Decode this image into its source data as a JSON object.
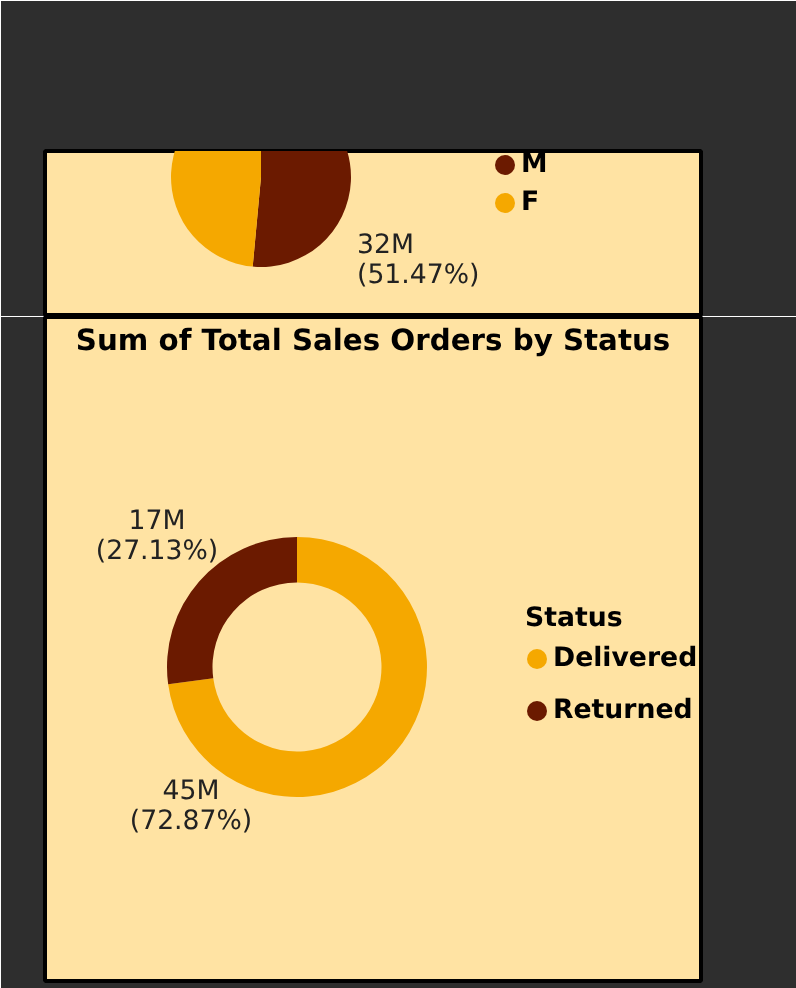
{
  "chart_data": [
    {
      "type": "pie",
      "categories": [
        "M",
        "F"
      ],
      "values": [
        51.47,
        48.53
      ],
      "colors": [
        "#6b1a00",
        "#f5a800"
      ],
      "value_labels": [
        "32M\n(51.47%)",
        null
      ],
      "legend": "right"
    },
    {
      "type": "donut",
      "title": "Sum of Total Sales Orders by Status",
      "legend_title": "Status",
      "categories": [
        "Delivered",
        "Returned"
      ],
      "values": [
        72.87,
        27.13
      ],
      "colors": [
        "#f5a800",
        "#6b1a00"
      ],
      "value_labels": [
        "45M\n(72.87%)",
        "17M\n(27.13%)"
      ],
      "legend": "right"
    }
  ]
}
